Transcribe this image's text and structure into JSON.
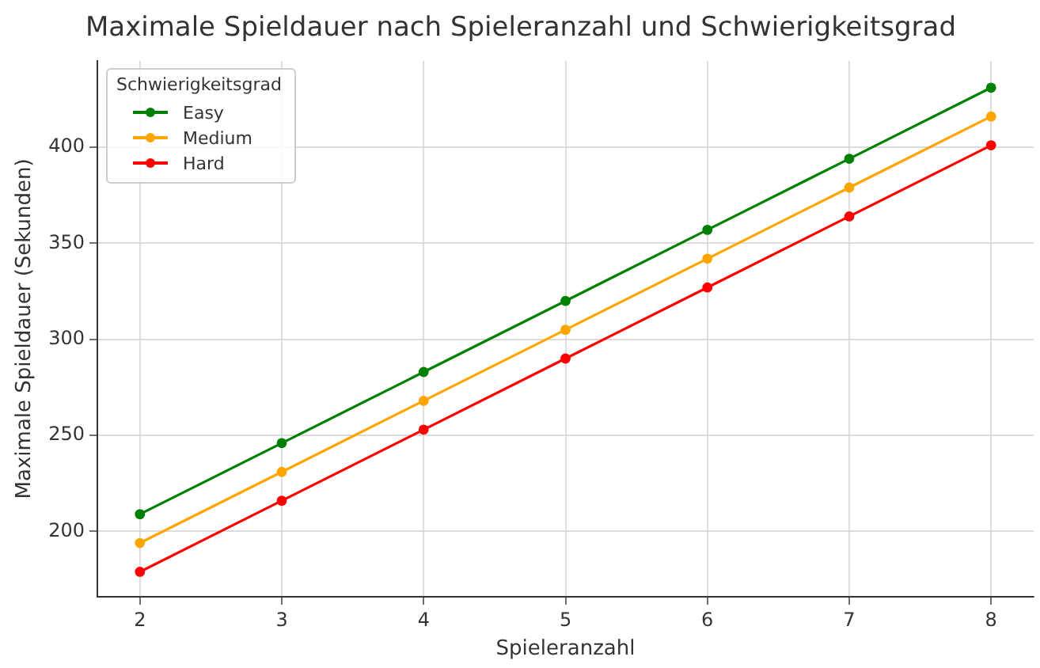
{
  "chart_data": {
    "type": "line",
    "title": "Maximale Spieldauer nach Spieleranzahl und Schwierigkeitsgrad",
    "xlabel": "Spieleranzahl",
    "ylabel": "Maximale Spieldauer (Sekunden)",
    "legend_title": "Schwierigkeitsgrad",
    "x": [
      2,
      3,
      4,
      5,
      6,
      7,
      8
    ],
    "series": [
      {
        "name": "Easy",
        "color": "#008000",
        "values": [
          209,
          246,
          283,
          320,
          357,
          394,
          431
        ]
      },
      {
        "name": "Medium",
        "color": "#ffa500",
        "values": [
          194,
          231,
          268,
          305,
          342,
          379,
          416
        ]
      },
      {
        "name": "Hard",
        "color": "#ff0000",
        "values": [
          179,
          216,
          253,
          290,
          327,
          364,
          401
        ]
      }
    ],
    "xlim": [
      1.7,
      8.3
    ],
    "xticks": [
      2,
      3,
      4,
      5,
      6,
      7,
      8
    ],
    "ylim": [
      166,
      445
    ],
    "yticks": [
      200,
      250,
      300,
      350,
      400
    ],
    "grid": true,
    "legend": "top left",
    "marker": "circle",
    "line_style": "solid"
  }
}
